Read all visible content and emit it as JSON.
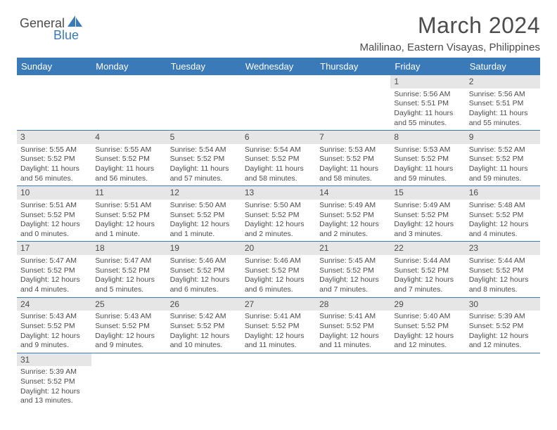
{
  "logo": {
    "text1": "General",
    "text2": "Blue"
  },
  "header": {
    "title": "March 2024",
    "subtitle": "Malilinao, Eastern Visayas, Philippines"
  },
  "colors": {
    "header_bg": "#3a7ab8",
    "header_text": "#ffffff",
    "daynum_bg": "#e6e6e6",
    "text": "#4c4c4c",
    "border": "#3a7ab8",
    "background": "#ffffff"
  },
  "typography": {
    "title_fontsize": 32,
    "subtitle_fontsize": 15,
    "dayheader_fontsize": 13,
    "daynum_fontsize": 12,
    "cell_fontsize": 10.5
  },
  "calendar": {
    "type": "calendar-table",
    "columns": [
      "Sunday",
      "Monday",
      "Tuesday",
      "Wednesday",
      "Thursday",
      "Friday",
      "Saturday"
    ],
    "weeks": [
      [
        null,
        null,
        null,
        null,
        null,
        {
          "n": "1",
          "sr": "Sunrise: 5:56 AM",
          "ss": "Sunset: 5:51 PM",
          "d1": "Daylight: 11 hours",
          "d2": "and 55 minutes."
        },
        {
          "n": "2",
          "sr": "Sunrise: 5:56 AM",
          "ss": "Sunset: 5:51 PM",
          "d1": "Daylight: 11 hours",
          "d2": "and 55 minutes."
        }
      ],
      [
        {
          "n": "3",
          "sr": "Sunrise: 5:55 AM",
          "ss": "Sunset: 5:52 PM",
          "d1": "Daylight: 11 hours",
          "d2": "and 56 minutes."
        },
        {
          "n": "4",
          "sr": "Sunrise: 5:55 AM",
          "ss": "Sunset: 5:52 PM",
          "d1": "Daylight: 11 hours",
          "d2": "and 56 minutes."
        },
        {
          "n": "5",
          "sr": "Sunrise: 5:54 AM",
          "ss": "Sunset: 5:52 PM",
          "d1": "Daylight: 11 hours",
          "d2": "and 57 minutes."
        },
        {
          "n": "6",
          "sr": "Sunrise: 5:54 AM",
          "ss": "Sunset: 5:52 PM",
          "d1": "Daylight: 11 hours",
          "d2": "and 58 minutes."
        },
        {
          "n": "7",
          "sr": "Sunrise: 5:53 AM",
          "ss": "Sunset: 5:52 PM",
          "d1": "Daylight: 11 hours",
          "d2": "and 58 minutes."
        },
        {
          "n": "8",
          "sr": "Sunrise: 5:53 AM",
          "ss": "Sunset: 5:52 PM",
          "d1": "Daylight: 11 hours",
          "d2": "and 59 minutes."
        },
        {
          "n": "9",
          "sr": "Sunrise: 5:52 AM",
          "ss": "Sunset: 5:52 PM",
          "d1": "Daylight: 11 hours",
          "d2": "and 59 minutes."
        }
      ],
      [
        {
          "n": "10",
          "sr": "Sunrise: 5:51 AM",
          "ss": "Sunset: 5:52 PM",
          "d1": "Daylight: 12 hours",
          "d2": "and 0 minutes."
        },
        {
          "n": "11",
          "sr": "Sunrise: 5:51 AM",
          "ss": "Sunset: 5:52 PM",
          "d1": "Daylight: 12 hours",
          "d2": "and 1 minute."
        },
        {
          "n": "12",
          "sr": "Sunrise: 5:50 AM",
          "ss": "Sunset: 5:52 PM",
          "d1": "Daylight: 12 hours",
          "d2": "and 1 minute."
        },
        {
          "n": "13",
          "sr": "Sunrise: 5:50 AM",
          "ss": "Sunset: 5:52 PM",
          "d1": "Daylight: 12 hours",
          "d2": "and 2 minutes."
        },
        {
          "n": "14",
          "sr": "Sunrise: 5:49 AM",
          "ss": "Sunset: 5:52 PM",
          "d1": "Daylight: 12 hours",
          "d2": "and 2 minutes."
        },
        {
          "n": "15",
          "sr": "Sunrise: 5:49 AM",
          "ss": "Sunset: 5:52 PM",
          "d1": "Daylight: 12 hours",
          "d2": "and 3 minutes."
        },
        {
          "n": "16",
          "sr": "Sunrise: 5:48 AM",
          "ss": "Sunset: 5:52 PM",
          "d1": "Daylight: 12 hours",
          "d2": "and 4 minutes."
        }
      ],
      [
        {
          "n": "17",
          "sr": "Sunrise: 5:47 AM",
          "ss": "Sunset: 5:52 PM",
          "d1": "Daylight: 12 hours",
          "d2": "and 4 minutes."
        },
        {
          "n": "18",
          "sr": "Sunrise: 5:47 AM",
          "ss": "Sunset: 5:52 PM",
          "d1": "Daylight: 12 hours",
          "d2": "and 5 minutes."
        },
        {
          "n": "19",
          "sr": "Sunrise: 5:46 AM",
          "ss": "Sunset: 5:52 PM",
          "d1": "Daylight: 12 hours",
          "d2": "and 6 minutes."
        },
        {
          "n": "20",
          "sr": "Sunrise: 5:46 AM",
          "ss": "Sunset: 5:52 PM",
          "d1": "Daylight: 12 hours",
          "d2": "and 6 minutes."
        },
        {
          "n": "21",
          "sr": "Sunrise: 5:45 AM",
          "ss": "Sunset: 5:52 PM",
          "d1": "Daylight: 12 hours",
          "d2": "and 7 minutes."
        },
        {
          "n": "22",
          "sr": "Sunrise: 5:44 AM",
          "ss": "Sunset: 5:52 PM",
          "d1": "Daylight: 12 hours",
          "d2": "and 7 minutes."
        },
        {
          "n": "23",
          "sr": "Sunrise: 5:44 AM",
          "ss": "Sunset: 5:52 PM",
          "d1": "Daylight: 12 hours",
          "d2": "and 8 minutes."
        }
      ],
      [
        {
          "n": "24",
          "sr": "Sunrise: 5:43 AM",
          "ss": "Sunset: 5:52 PM",
          "d1": "Daylight: 12 hours",
          "d2": "and 9 minutes."
        },
        {
          "n": "25",
          "sr": "Sunrise: 5:43 AM",
          "ss": "Sunset: 5:52 PM",
          "d1": "Daylight: 12 hours",
          "d2": "and 9 minutes."
        },
        {
          "n": "26",
          "sr": "Sunrise: 5:42 AM",
          "ss": "Sunset: 5:52 PM",
          "d1": "Daylight: 12 hours",
          "d2": "and 10 minutes."
        },
        {
          "n": "27",
          "sr": "Sunrise: 5:41 AM",
          "ss": "Sunset: 5:52 PM",
          "d1": "Daylight: 12 hours",
          "d2": "and 11 minutes."
        },
        {
          "n": "28",
          "sr": "Sunrise: 5:41 AM",
          "ss": "Sunset: 5:52 PM",
          "d1": "Daylight: 12 hours",
          "d2": "and 11 minutes."
        },
        {
          "n": "29",
          "sr": "Sunrise: 5:40 AM",
          "ss": "Sunset: 5:52 PM",
          "d1": "Daylight: 12 hours",
          "d2": "and 12 minutes."
        },
        {
          "n": "30",
          "sr": "Sunrise: 5:39 AM",
          "ss": "Sunset: 5:52 PM",
          "d1": "Daylight: 12 hours",
          "d2": "and 12 minutes."
        }
      ],
      [
        {
          "n": "31",
          "sr": "Sunrise: 5:39 AM",
          "ss": "Sunset: 5:52 PM",
          "d1": "Daylight: 12 hours",
          "d2": "and 13 minutes."
        },
        null,
        null,
        null,
        null,
        null,
        null
      ]
    ]
  }
}
